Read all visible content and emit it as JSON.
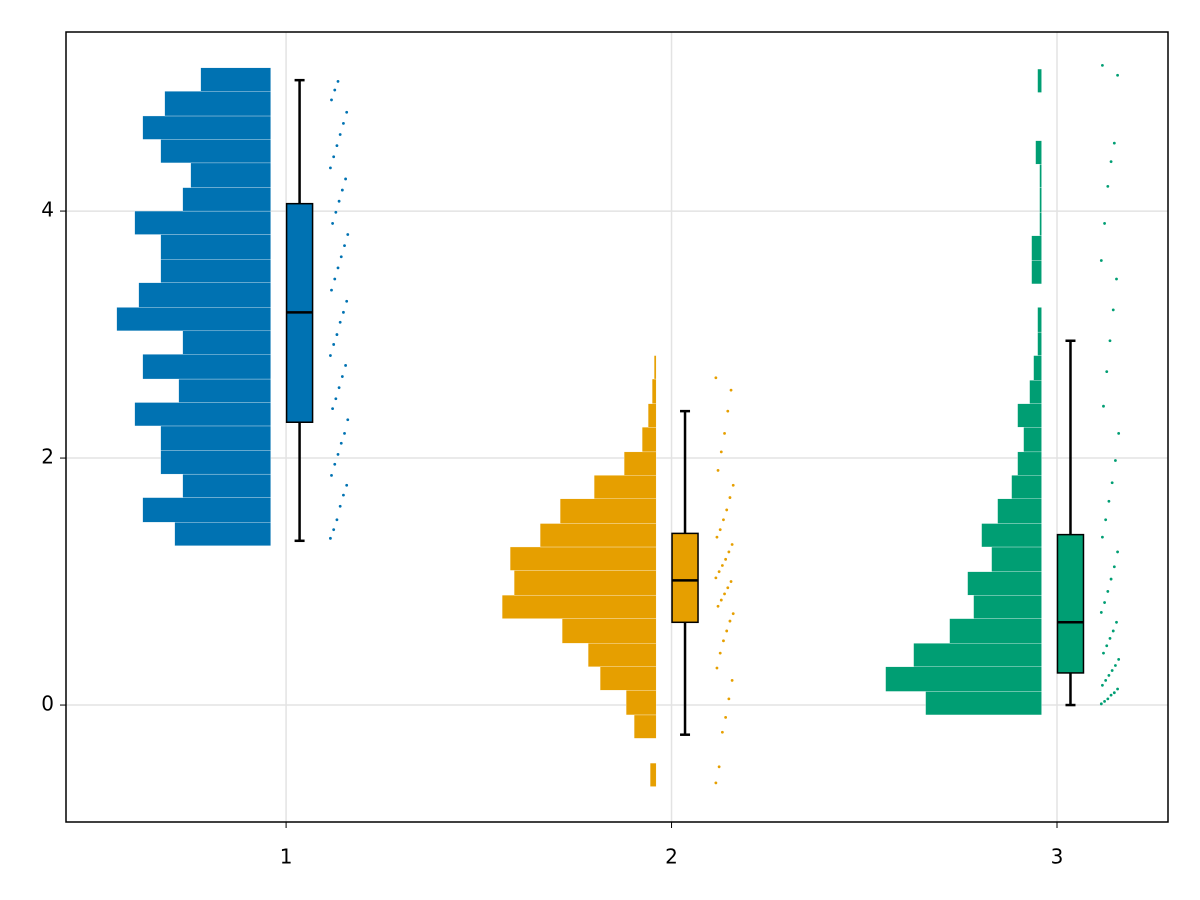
{
  "chart_data": {
    "type": "raincloud",
    "xlim": [
      0.429,
      3.288
    ],
    "xticks": [
      1,
      2,
      3
    ],
    "ylim": [
      -0.947,
      5.45
    ],
    "yticks": [
      0,
      2,
      4
    ],
    "grid": true,
    "series": [
      {
        "x": 1,
        "color": "#0072b2",
        "bins": [
          1.29,
          1.48,
          1.68,
          1.87,
          2.06,
          2.26,
          2.45,
          2.64,
          2.84,
          3.03,
          3.22,
          3.42,
          3.61,
          3.81,
          4.0,
          4.19,
          4.39,
          4.58,
          4.77,
          4.97,
          5.16
        ],
        "counts": [
          48,
          64,
          44,
          55,
          55,
          68,
          46,
          64,
          44,
          77,
          66,
          55,
          55,
          68,
          44,
          40,
          55,
          64,
          53,
          35
        ],
        "box": {
          "min": 1.33,
          "q1": 2.29,
          "median": 3.18,
          "q3": 4.06,
          "max": 5.06
        },
        "points": [
          1.35,
          1.42,
          1.5,
          1.61,
          1.7,
          1.78,
          1.86,
          1.95,
          2.03,
          2.12,
          2.2,
          2.31,
          2.4,
          2.48,
          2.57,
          2.66,
          2.75,
          2.83,
          2.92,
          3.0,
          3.1,
          3.18,
          3.27,
          3.36,
          3.45,
          3.54,
          3.63,
          3.72,
          3.81,
          3.9,
          3.99,
          4.08,
          4.17,
          4.26,
          4.35,
          4.44,
          4.53,
          4.62,
          4.71,
          4.8,
          4.9,
          4.98,
          5.05
        ]
      },
      {
        "x": 2,
        "color": "#e69f00",
        "bins": [
          -0.66,
          -0.47,
          -0.27,
          -0.08,
          0.12,
          0.31,
          0.5,
          0.7,
          0.89,
          1.09,
          1.28,
          1.47,
          1.67,
          1.86,
          2.05,
          2.25,
          2.44,
          2.64,
          2.83
        ],
        "counts": [
          3,
          0,
          11,
          15,
          28,
          34,
          47,
          77,
          71,
          73,
          58,
          48,
          31,
          16,
          7,
          4,
          2,
          1
        ],
        "box": {
          "min": -0.24,
          "q1": 0.67,
          "median": 1.01,
          "q3": 1.39,
          "max": 2.38
        },
        "points": [
          -0.63,
          -0.5,
          -0.22,
          -0.1,
          0.05,
          0.2,
          0.3,
          0.42,
          0.52,
          0.6,
          0.68,
          0.74,
          0.8,
          0.85,
          0.9,
          0.95,
          1.0,
          1.03,
          1.08,
          1.13,
          1.18,
          1.24,
          1.3,
          1.36,
          1.42,
          1.5,
          1.58,
          1.68,
          1.78,
          1.9,
          2.05,
          2.2,
          2.38,
          2.55,
          2.65
        ]
      },
      {
        "x": 3,
        "color": "#009e73",
        "bins": [
          -0.08,
          0.11,
          0.31,
          0.5,
          0.7,
          0.89,
          1.08,
          1.28,
          1.47,
          1.67,
          1.86,
          2.05,
          2.25,
          2.44,
          2.63,
          2.83,
          3.02,
          3.22,
          3.41,
          3.6,
          3.8,
          3.99,
          4.19,
          4.38,
          4.57,
          4.77,
          4.96,
          5.15
        ],
        "counts": [
          58,
          78,
          64,
          46,
          34,
          37,
          25,
          30,
          22,
          15,
          12,
          9,
          12,
          6,
          4,
          2,
          2,
          0,
          5,
          5,
          1,
          1,
          1,
          3,
          0,
          0,
          2
        ],
        "box": {
          "min": 0.0,
          "q1": 0.26,
          "median": 0.67,
          "q3": 1.38,
          "max": 2.95
        },
        "points": [
          0.01,
          0.03,
          0.05,
          0.08,
          0.1,
          0.13,
          0.16,
          0.2,
          0.24,
          0.28,
          0.32,
          0.37,
          0.42,
          0.48,
          0.54,
          0.6,
          0.67,
          0.75,
          0.83,
          0.92,
          1.02,
          1.12,
          1.24,
          1.36,
          1.5,
          1.65,
          1.8,
          1.98,
          2.2,
          2.42,
          2.7,
          2.95,
          3.2,
          3.45,
          3.6,
          3.9,
          4.2,
          4.4,
          4.55,
          5.1,
          5.18
        ]
      }
    ]
  }
}
